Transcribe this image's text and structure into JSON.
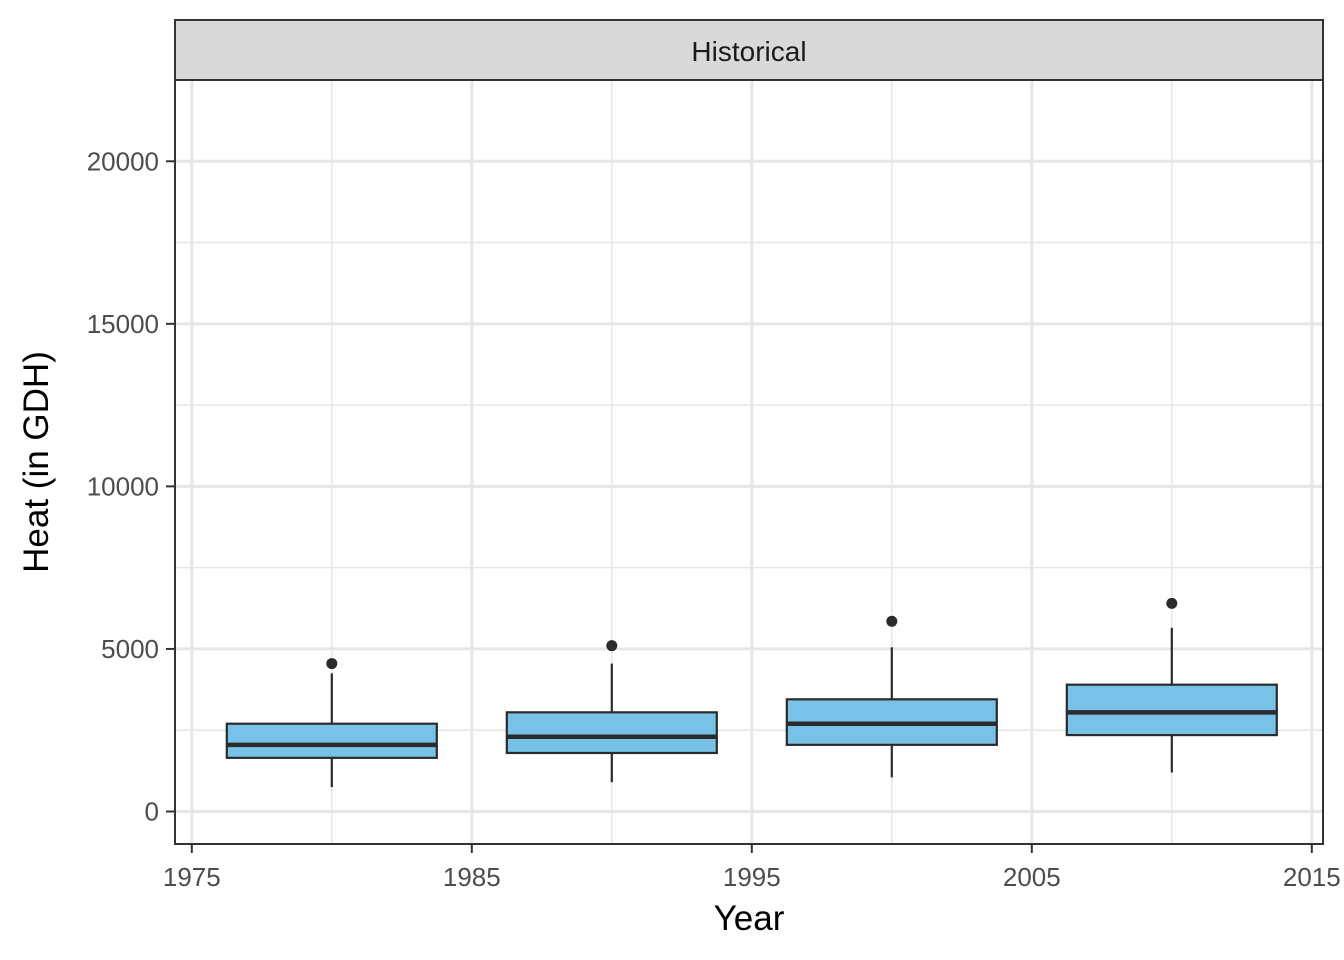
{
  "chart_data": {
    "type": "boxplot",
    "facet": "Historical",
    "xlabel": "Year",
    "ylabel": "Heat (in GDH)",
    "xlim": [
      1974.4,
      2015.4
    ],
    "ylim": [
      -1000,
      22500
    ],
    "x_ticks": [
      1975,
      1985,
      1995,
      2005,
      2015
    ],
    "x_tick_labels": [
      "1975",
      "1985",
      "1995",
      "2005",
      "2015"
    ],
    "y_ticks": [
      0,
      5000,
      10000,
      15000,
      20000
    ],
    "y_tick_labels": [
      "0",
      "5000",
      "10000",
      "15000",
      "20000"
    ],
    "y_minor": [
      2500,
      7500,
      12500,
      17500
    ],
    "x_minor": [
      1980,
      1990,
      2000,
      2010
    ],
    "grid": true,
    "box_width_years": 7.5,
    "colors": {
      "fill": "#77C2E6",
      "outline": "#2b2b2b",
      "grid": "#e6e6e6",
      "strip": "#d9d9d9",
      "panel_border": "#333333"
    },
    "boxes": [
      {
        "x": 1980,
        "whisker_low": 750,
        "q1": 1650,
        "median": 2050,
        "q3": 2700,
        "whisker_high": 4250,
        "outliers": [
          4550
        ]
      },
      {
        "x": 1990,
        "whisker_low": 900,
        "q1": 1800,
        "median": 2300,
        "q3": 3050,
        "whisker_high": 4550,
        "outliers": [
          5100
        ]
      },
      {
        "x": 2000,
        "whisker_low": 1050,
        "q1": 2050,
        "median": 2700,
        "q3": 3450,
        "whisker_high": 5050,
        "outliers": [
          5850
        ]
      },
      {
        "x": 2010,
        "whisker_low": 1200,
        "q1": 2350,
        "median": 3050,
        "q3": 3900,
        "whisker_high": 5650,
        "outliers": [
          6400
        ]
      }
    ]
  }
}
